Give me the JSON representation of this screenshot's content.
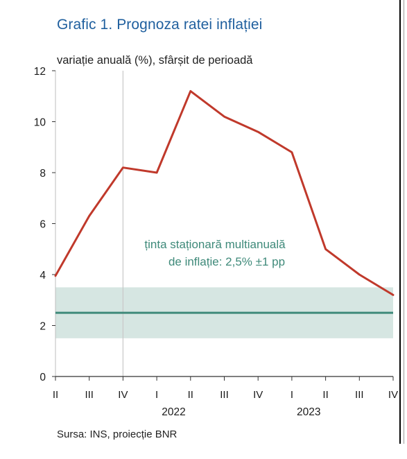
{
  "title": "Grafic 1. Prognoza  ratei inflației",
  "unit_label": "variație anuală (%), sfârșit de perioadă",
  "source": "Sursa: INS, proiecție BNR",
  "annotation": {
    "line1": "ținta staționară multianuală",
    "line2": "de inflație: 2,5% ±1 pp"
  },
  "colors": {
    "series": "#c0392b",
    "target_line": "#3f8a7a",
    "target_band": "#d6e6e2",
    "annotation": "#3f8a7a",
    "title": "#1f5f9e"
  },
  "chart_data": {
    "type": "line",
    "title": "Grafic 1. Prognoza  ratei inflației",
    "ylabel": "variație anuală (%), sfârșit de perioadă",
    "ylim": [
      0,
      12
    ],
    "yticks": [
      "0",
      "2",
      "4",
      "6",
      "8",
      "10",
      "12"
    ],
    "categories": [
      "II",
      "III",
      "IV",
      "I",
      "II",
      "III",
      "IV",
      "I",
      "II",
      "III",
      "IV"
    ],
    "year_labels": [
      "2022",
      "2023"
    ],
    "series": [
      {
        "values": [
          3.95,
          6.3,
          8.2,
          8.0,
          11.2,
          10.2,
          9.6,
          8.8,
          5.0,
          4.0,
          3.2
        ]
      }
    ],
    "target": {
      "value": 2.5,
      "band": [
        1.5,
        3.5
      ]
    },
    "grid": false
  }
}
